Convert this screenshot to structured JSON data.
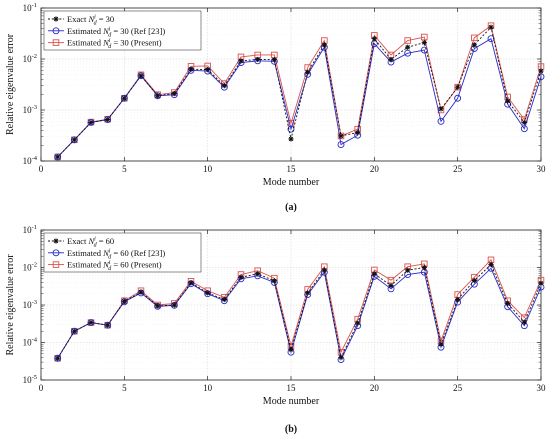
{
  "chart_data": [
    {
      "type": "line",
      "caption": "(a)",
      "xlabel": "Mode number",
      "ylabel": "Relative eigenvalue error",
      "xlim": [
        0,
        30
      ],
      "ylim": [
        0.0001,
        0.1
      ],
      "yscale": "log",
      "grid": true,
      "legend_position": "top-left",
      "x": [
        1,
        2,
        3,
        4,
        5,
        6,
        7,
        8,
        9,
        10,
        11,
        12,
        13,
        14,
        15,
        16,
        17,
        18,
        19,
        20,
        21,
        22,
        23,
        24,
        25,
        26,
        27,
        28,
        29,
        30
      ],
      "xticks": [
        "0",
        "5",
        "10",
        "15",
        "20",
        "25",
        "30"
      ],
      "yticks": [
        "10^-4",
        "10^-3",
        "10^-2",
        "10^-1"
      ],
      "series": [
        {
          "name_prefix": "Exact",
          "name_main": "N",
          "name_sup": "i",
          "name_sub": "d",
          "name_suffix": " = 30",
          "color": "#111111",
          "marker": "asterisk",
          "dash": "dotted",
          "values": [
            0.00012,
            0.00026,
            0.00057,
            0.00065,
            0.0017,
            0.0047,
            0.0019,
            0.0021,
            0.0063,
            0.0062,
            0.003,
            0.0092,
            0.0098,
            0.0097,
            0.00027,
            0.0055,
            0.019,
            0.00031,
            0.00036,
            0.025,
            0.0098,
            0.017,
            0.021,
            0.00105,
            0.0028,
            0.019,
            0.042,
            0.0015,
            0.00057,
            0.0058
          ]
        },
        {
          "name_prefix": "Estimated",
          "name_main": "N",
          "name_sup": "i",
          "name_sub": "d",
          "name_suffix": " = 30 (Ref [23])",
          "color": "#2b2bc9",
          "marker": "circle",
          "dash": "solid",
          "values": [
            0.00012,
            0.00026,
            0.00057,
            0.00065,
            0.0017,
            0.0047,
            0.0019,
            0.002,
            0.006,
            0.0058,
            0.0028,
            0.0085,
            0.0092,
            0.009,
            0.00042,
            0.005,
            0.017,
            0.00021,
            0.00032,
            0.02,
            0.0087,
            0.013,
            0.015,
            0.0006,
            0.0017,
            0.016,
            0.025,
            0.0013,
            0.00043,
            0.0045
          ]
        },
        {
          "name_prefix": "Estimated",
          "name_main": "N",
          "name_sup": "i",
          "name_sub": "d",
          "name_suffix": " = 30 (Present)",
          "color": "#d9534f",
          "marker": "square",
          "dash": "solid",
          "values": [
            0.00012,
            0.00026,
            0.00058,
            0.00066,
            0.0017,
            0.0049,
            0.002,
            0.0022,
            0.0072,
            0.0073,
            0.0033,
            0.011,
            0.012,
            0.012,
            0.00055,
            0.0068,
            0.023,
            0.00031,
            0.00042,
            0.029,
            0.012,
            0.023,
            0.027,
            0.001,
            0.0028,
            0.026,
            0.045,
            0.0018,
            0.00065,
            0.0071
          ]
        }
      ]
    },
    {
      "type": "line",
      "caption": "(b)",
      "xlabel": "Mode number",
      "ylabel": "Relative eigenvalue error",
      "xlim": [
        0,
        30
      ],
      "ylim": [
        1e-05,
        0.1
      ],
      "yscale": "log",
      "grid": true,
      "legend_position": "top-left",
      "x": [
        1,
        2,
        3,
        4,
        5,
        6,
        7,
        8,
        9,
        10,
        11,
        12,
        13,
        14,
        15,
        16,
        17,
        18,
        19,
        20,
        21,
        22,
        23,
        24,
        25,
        26,
        27,
        28,
        29,
        30
      ],
      "xticks": [
        "0",
        "5",
        "10",
        "15",
        "20",
        "25",
        "30"
      ],
      "yticks": [
        "10^-5",
        "10^-4",
        "10^-3",
        "10^-2",
        "10^-1"
      ],
      "series": [
        {
          "name_prefix": "Exact",
          "name_main": "N",
          "name_sup": "i",
          "name_sub": "d",
          "name_suffix": " = 60",
          "color": "#111111",
          "marker": "asterisk",
          "dash": "dotted",
          "values": [
            3.8e-05,
            0.0002,
            0.00034,
            0.00029,
            0.00125,
            0.0022,
            0.00095,
            0.001,
            0.0039,
            0.0021,
            0.0014,
            0.0055,
            0.0068,
            0.0044,
            6.5e-05,
            0.0021,
            0.0085,
            4e-05,
            0.00033,
            0.0068,
            0.0033,
            0.0085,
            0.01,
            9e-05,
            0.0014,
            0.0045,
            0.012,
            0.0011,
            0.00035,
            0.0038
          ]
        },
        {
          "name_prefix": "Estimated",
          "name_main": "N",
          "name_sup": "i",
          "name_sub": "d",
          "name_suffix": " = 60 (Ref [23])",
          "color": "#2b2bc9",
          "marker": "circle",
          "dash": "solid",
          "values": [
            3.8e-05,
            0.0002,
            0.00034,
            0.00029,
            0.00122,
            0.0021,
            0.00092,
            0.00098,
            0.0037,
            0.002,
            0.0013,
            0.005,
            0.006,
            0.004,
            5.5e-05,
            0.0019,
            0.0075,
            3.5e-05,
            0.00028,
            0.0058,
            0.0027,
            0.0065,
            0.0075,
            7.5e-05,
            0.0012,
            0.0036,
            0.0095,
            0.0009,
            0.00028,
            0.003
          ]
        },
        {
          "name_prefix": "Estimated",
          "name_main": "N",
          "name_sup": "i",
          "name_sub": "d",
          "name_suffix": " = 60 (Present)",
          "color": "#d9534f",
          "marker": "square",
          "dash": "solid",
          "values": [
            3.8e-05,
            0.0002,
            0.00034,
            0.00029,
            0.0013,
            0.0024,
            0.001,
            0.0011,
            0.0043,
            0.0024,
            0.0016,
            0.0065,
            0.0082,
            0.0052,
            8e-05,
            0.0026,
            0.0105,
            5.5e-05,
            0.00042,
            0.0086,
            0.0046,
            0.0105,
            0.0125,
            0.00011,
            0.0019,
            0.0055,
            0.016,
            0.0013,
            0.00046,
            0.0046
          ]
        }
      ]
    }
  ]
}
